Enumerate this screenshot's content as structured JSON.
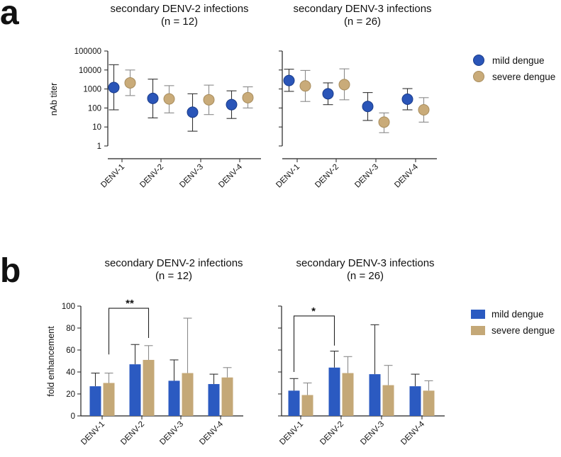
{
  "panels": {
    "a": {
      "letter": "a",
      "left_title": "secondary DENV-2 infections",
      "left_n": "(n = 12)",
      "right_title": "secondary DENV-3 infections",
      "right_n": "(n = 26)",
      "ylabel": "nAb titer",
      "legend": [
        "mild dengue",
        "severe dengue"
      ]
    },
    "b": {
      "letter": "b",
      "left_title": "secondary DENV-2 infections",
      "left_n": "(n = 12)",
      "right_title": "secondary DENV-3 infections",
      "right_n": "(n = 26)",
      "ylabel": "fold enhancement",
      "legend": [
        "mild dengue",
        "severe dengue"
      ],
      "sig_left": "**",
      "sig_right": "*"
    }
  },
  "colors": {
    "mild_point": "#2a55b8",
    "severe_point": "#c9ab79",
    "mild_bar": "#2b5ac1",
    "severe_bar": "#c4a877",
    "axis": "#222222"
  },
  "chart_data": [
    {
      "type": "scatter",
      "title": "secondary DENV-2 infections (n = 12)",
      "ylabel": "nAb titer",
      "yscale": "log",
      "ylim": [
        1,
        100000
      ],
      "yticks": [
        "1",
        "10",
        "100",
        "1000",
        "10000",
        "100000"
      ],
      "categories": [
        "DENV-1",
        "DENV-2",
        "DENV-3",
        "DENV-4"
      ],
      "series": [
        {
          "name": "mild dengue",
          "values": [
            1200,
            320,
            60,
            150
          ],
          "err_low": [
            80,
            30,
            6,
            28
          ],
          "err_high": [
            19000,
            3300,
            560,
            800
          ]
        },
        {
          "name": "severe dengue",
          "values": [
            2100,
            300,
            270,
            350
          ],
          "err_low": [
            450,
            55,
            45,
            100
          ],
          "err_high": [
            10000,
            1500,
            1600,
            1300
          ]
        }
      ]
    },
    {
      "type": "scatter",
      "title": "secondary DENV-3 infections (n = 26)",
      "ylabel": "",
      "yscale": "log",
      "ylim": [
        1,
        100000
      ],
      "categories": [
        "DENV-1",
        "DENV-2",
        "DENV-3",
        "DENV-4"
      ],
      "series": [
        {
          "name": "mild dengue",
          "values": [
            2800,
            560,
            120,
            290
          ],
          "err_low": [
            750,
            150,
            22,
            80
          ],
          "err_high": [
            11000,
            2100,
            650,
            1050
          ]
        },
        {
          "name": "severe dengue",
          "values": [
            1450,
            1700,
            18,
            80
          ],
          "err_low": [
            220,
            270,
            5,
            18
          ],
          "err_high": [
            9500,
            11500,
            55,
            350
          ]
        }
      ]
    },
    {
      "type": "bar",
      "title": "secondary DENV-2 infections (n = 12)",
      "ylabel": "fold enhancement",
      "ylim": [
        0,
        100
      ],
      "yticks": [
        "0",
        "20",
        "40",
        "60",
        "80",
        "100"
      ],
      "categories": [
        "DENV-1",
        "DENV-2",
        "DENV-3",
        "DENV-4"
      ],
      "series": [
        {
          "name": "mild dengue",
          "values": [
            27,
            47,
            32,
            29
          ],
          "err_high": [
            39,
            65,
            51,
            38
          ]
        },
        {
          "name": "severe dengue",
          "values": [
            30,
            51,
            39,
            35
          ],
          "err_high": [
            39,
            64,
            89,
            44
          ]
        }
      ],
      "annotations": [
        {
          "text": "**",
          "from": "DENV-1",
          "to": "DENV-2"
        }
      ]
    },
    {
      "type": "bar",
      "title": "secondary DENV-3 infections (n = 26)",
      "ylabel": "",
      "ylim": [
        0,
        100
      ],
      "categories": [
        "DENV-1",
        "DENV-2",
        "DENV-3",
        "DENV-4"
      ],
      "series": [
        {
          "name": "mild dengue",
          "values": [
            23,
            44,
            38,
            27
          ],
          "err_high": [
            34,
            59,
            83,
            38
          ]
        },
        {
          "name": "severe dengue",
          "values": [
            19,
            39,
            28,
            23
          ],
          "err_high": [
            30,
            54,
            46,
            32
          ]
        }
      ],
      "annotations": [
        {
          "text": "*",
          "from": "DENV-1",
          "to": "DENV-2"
        }
      ]
    }
  ]
}
